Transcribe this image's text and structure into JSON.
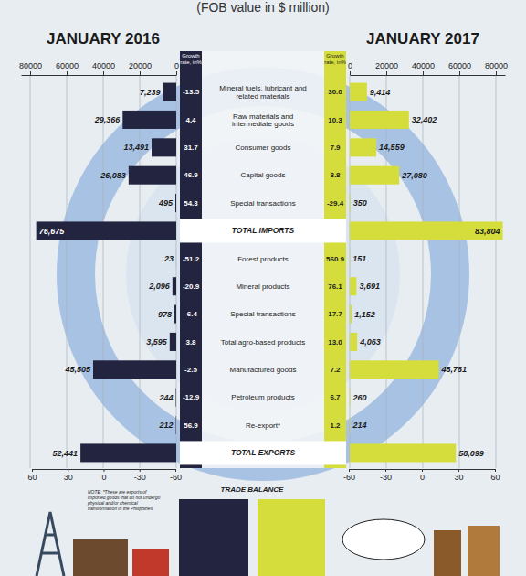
{
  "chart_data": {
    "type": "bar",
    "orientation": "horizontal",
    "subtitle": "(FOB value in $ million)",
    "categories": [
      "Mineral fuels, lubricant and related materials",
      "Raw materials and intermediate goods",
      "Consumer goods",
      "Capital goods",
      "Special transactions",
      "TOTAL IMPORTS",
      "Forest products",
      "Mineral products",
      "Special transactions",
      "Total agro-based products",
      "Manufactured goods",
      "Petroleum products",
      "Re-export*",
      "TOTAL EXPORTS"
    ],
    "series": [
      {
        "name": "JANUARY 2016",
        "color": "#23243f",
        "values": [
          7239,
          29366,
          13491,
          26083,
          495,
          76675,
          23,
          2096,
          978,
          3595,
          45505,
          244,
          212,
          52441
        ],
        "value_labels": [
          "7,239",
          "29,366",
          "13,491",
          "26,083",
          "495",
          "76,675",
          "23",
          "2,096",
          "978",
          "3,595",
          "45,505",
          "244",
          "212",
          "52,441"
        ],
        "growth": [
          -13.5,
          4.4,
          31.7,
          46.9,
          54.3,
          null,
          -51.2,
          -20.9,
          -6.4,
          3.8,
          -2.5,
          -12.9,
          56.9,
          null
        ],
        "growth_labels": [
          "-13.5",
          "4.4",
          "31.7",
          "46.9",
          "54.3",
          null,
          "-51.2",
          "-20.9",
          "-6.4",
          "3.8",
          "-2.5",
          "-12.9",
          "56.9",
          null
        ]
      },
      {
        "name": "JANUARY 2017",
        "color": "#d4dd3b",
        "values": [
          9414,
          32402,
          14559,
          27080,
          350,
          83804,
          151,
          3691,
          1152,
          4063,
          48781,
          260,
          214,
          58099
        ],
        "value_labels": [
          "9,414",
          "32,402",
          "14,559",
          "27,080",
          "350",
          "83,804",
          "151",
          "3,691",
          "1,152",
          "4,063",
          "48,781",
          "260",
          "214",
          "58,099"
        ],
        "growth": [
          30.0,
          10.3,
          7.9,
          3.8,
          -29.4,
          null,
          560.9,
          76.1,
          17.7,
          13.0,
          7.2,
          6.7,
          1.2,
          null
        ],
        "growth_labels": [
          "30.0",
          "10.3",
          "7.9",
          "3.8",
          "-29.4",
          null,
          "560.9",
          "76.1",
          "17.7",
          "13.0",
          "7.2",
          "6.7",
          "1.2",
          null
        ]
      }
    ],
    "xlim": [
      0,
      85000
    ],
    "xticks": [
      0,
      20000,
      40000,
      60000,
      80000
    ],
    "growth_label": "Growth rate, in%",
    "growth_lim": [
      -60,
      60
    ],
    "growth_ticks": [
      -60,
      -30,
      0,
      30,
      60
    ],
    "annotations": [
      "TRADE BALANCE",
      "NOTE: *These are exports of imported goods that do not undergo physical and/or chemical transformation in the Philippines."
    ],
    "data_labels": true,
    "grid": true
  }
}
